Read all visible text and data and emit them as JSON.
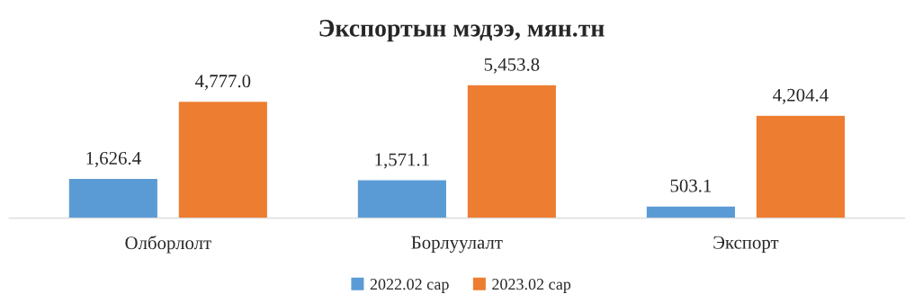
{
  "chart_data": {
    "type": "bar",
    "title": "Экспортын мэдээ, мян.тн",
    "categories": [
      "Олборлолт",
      "Борлуулалт",
      "Экспорт"
    ],
    "series": [
      {
        "name": "2022.02 сар",
        "color": "#5b9bd5",
        "values": [
          1626.4,
          1571.1,
          503.1
        ],
        "value_labels": [
          "1,626.4",
          "1,571.1",
          "503.1"
        ]
      },
      {
        "name": "2023.02 сар",
        "color": "#ed7d31",
        "values": [
          4777.0,
          5453.8,
          4204.4
        ],
        "value_labels": [
          "4,777.0",
          "5,453.8",
          "4,204.4"
        ]
      }
    ],
    "legend": "bottom",
    "grid": false
  }
}
